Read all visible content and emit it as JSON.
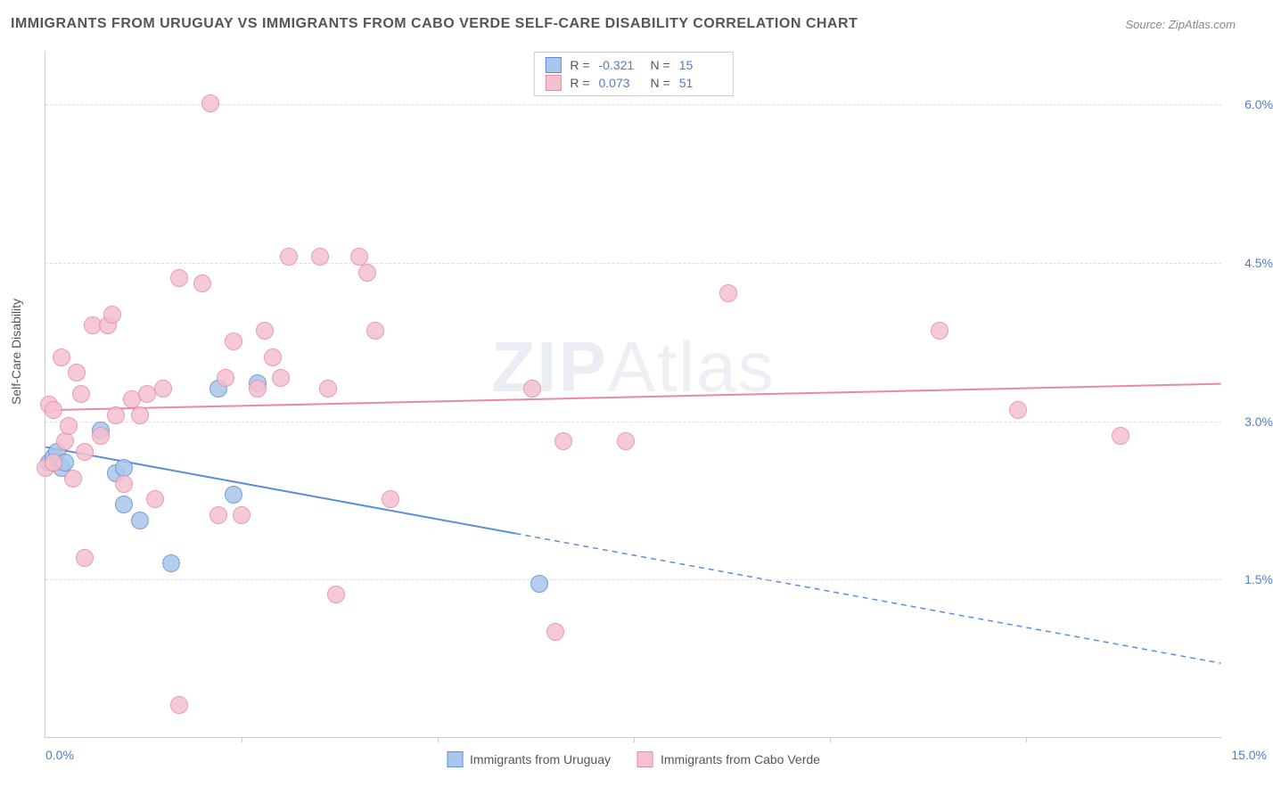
{
  "title": "IMMIGRANTS FROM URUGUAY VS IMMIGRANTS FROM CABO VERDE SELF-CARE DISABILITY CORRELATION CHART",
  "source_prefix": "Source: ",
  "source_name": "ZipAtlas.com",
  "y_axis_label": "Self-Care Disability",
  "watermark_bold": "ZIP",
  "watermark_thin": "Atlas",
  "chart": {
    "type": "scatter",
    "xlim": [
      0.0,
      15.0
    ],
    "ylim": [
      0.0,
      6.5
    ],
    "x_ticks": [
      0.0,
      15.0
    ],
    "x_tick_labels": [
      "0.0%",
      "15.0%"
    ],
    "x_minor_ticks": [
      2.5,
      5.0,
      7.5,
      10.0,
      12.5
    ],
    "y_gridlines": [
      1.5,
      3.0,
      4.5,
      6.0
    ],
    "y_tick_labels": [
      "1.5%",
      "3.0%",
      "4.5%",
      "6.0%"
    ],
    "background_color": "#ffffff",
    "grid_color": "#dddddd",
    "axis_color": "#cccccc",
    "tick_label_color": "#4a7fc9",
    "marker_radius": 10,
    "marker_stroke_width": 1.5,
    "marker_fill_opacity": 0.25,
    "series": [
      {
        "id": "uruguay",
        "label": "Immigrants from Uruguay",
        "color_stroke": "#5b8fd6",
        "color_fill": "#a9c6ec",
        "R": "-0.321",
        "N": "15",
        "trend": {
          "y_at_xmin": 2.75,
          "y_at_xmax": 0.7,
          "solid_until_x": 6.0,
          "stroke_width": 2
        },
        "points": [
          [
            0.05,
            2.6
          ],
          [
            0.1,
            2.65
          ],
          [
            0.15,
            2.7
          ],
          [
            0.2,
            2.55
          ],
          [
            0.25,
            2.6
          ],
          [
            0.7,
            2.9
          ],
          [
            0.9,
            2.5
          ],
          [
            1.0,
            2.55
          ],
          [
            1.0,
            2.2
          ],
          [
            1.2,
            2.05
          ],
          [
            1.6,
            1.65
          ],
          [
            2.2,
            3.3
          ],
          [
            2.4,
            2.3
          ],
          [
            2.7,
            3.35
          ],
          [
            6.3,
            1.45
          ]
        ]
      },
      {
        "id": "cabo_verde",
        "label": "Immigrants from Cabo Verde",
        "color_stroke": "#e68aa5",
        "color_fill": "#f5c0d0",
        "R": "0.073",
        "N": "51",
        "trend": {
          "y_at_xmin": 3.1,
          "y_at_xmax": 3.35,
          "solid_until_x": 15.0,
          "stroke_width": 2
        },
        "points": [
          [
            0.0,
            2.55
          ],
          [
            0.05,
            3.15
          ],
          [
            0.1,
            2.6
          ],
          [
            0.1,
            3.1
          ],
          [
            0.2,
            3.6
          ],
          [
            0.25,
            2.8
          ],
          [
            0.3,
            2.95
          ],
          [
            0.35,
            2.45
          ],
          [
            0.4,
            3.45
          ],
          [
            0.45,
            3.25
          ],
          [
            0.5,
            2.7
          ],
          [
            0.5,
            1.7
          ],
          [
            0.6,
            3.9
          ],
          [
            0.7,
            2.85
          ],
          [
            0.8,
            3.9
          ],
          [
            0.85,
            4.0
          ],
          [
            0.9,
            3.05
          ],
          [
            1.0,
            2.4
          ],
          [
            1.1,
            3.2
          ],
          [
            1.2,
            3.05
          ],
          [
            1.3,
            3.25
          ],
          [
            1.4,
            2.25
          ],
          [
            1.5,
            3.3
          ],
          [
            1.7,
            4.35
          ],
          [
            1.7,
            0.3
          ],
          [
            2.0,
            4.3
          ],
          [
            2.1,
            6.0
          ],
          [
            2.2,
            2.1
          ],
          [
            2.3,
            3.4
          ],
          [
            2.4,
            3.75
          ],
          [
            2.5,
            2.1
          ],
          [
            2.7,
            3.3
          ],
          [
            2.8,
            3.85
          ],
          [
            2.9,
            3.6
          ],
          [
            3.0,
            3.4
          ],
          [
            3.1,
            4.55
          ],
          [
            3.5,
            4.55
          ],
          [
            3.6,
            3.3
          ],
          [
            3.7,
            1.35
          ],
          [
            4.0,
            4.55
          ],
          [
            4.1,
            4.4
          ],
          [
            4.2,
            3.85
          ],
          [
            4.4,
            2.25
          ],
          [
            6.2,
            3.3
          ],
          [
            6.5,
            1.0
          ],
          [
            6.6,
            2.8
          ],
          [
            7.4,
            2.8
          ],
          [
            8.7,
            4.2
          ],
          [
            11.4,
            3.85
          ],
          [
            12.4,
            3.1
          ],
          [
            13.7,
            2.85
          ]
        ]
      }
    ]
  }
}
